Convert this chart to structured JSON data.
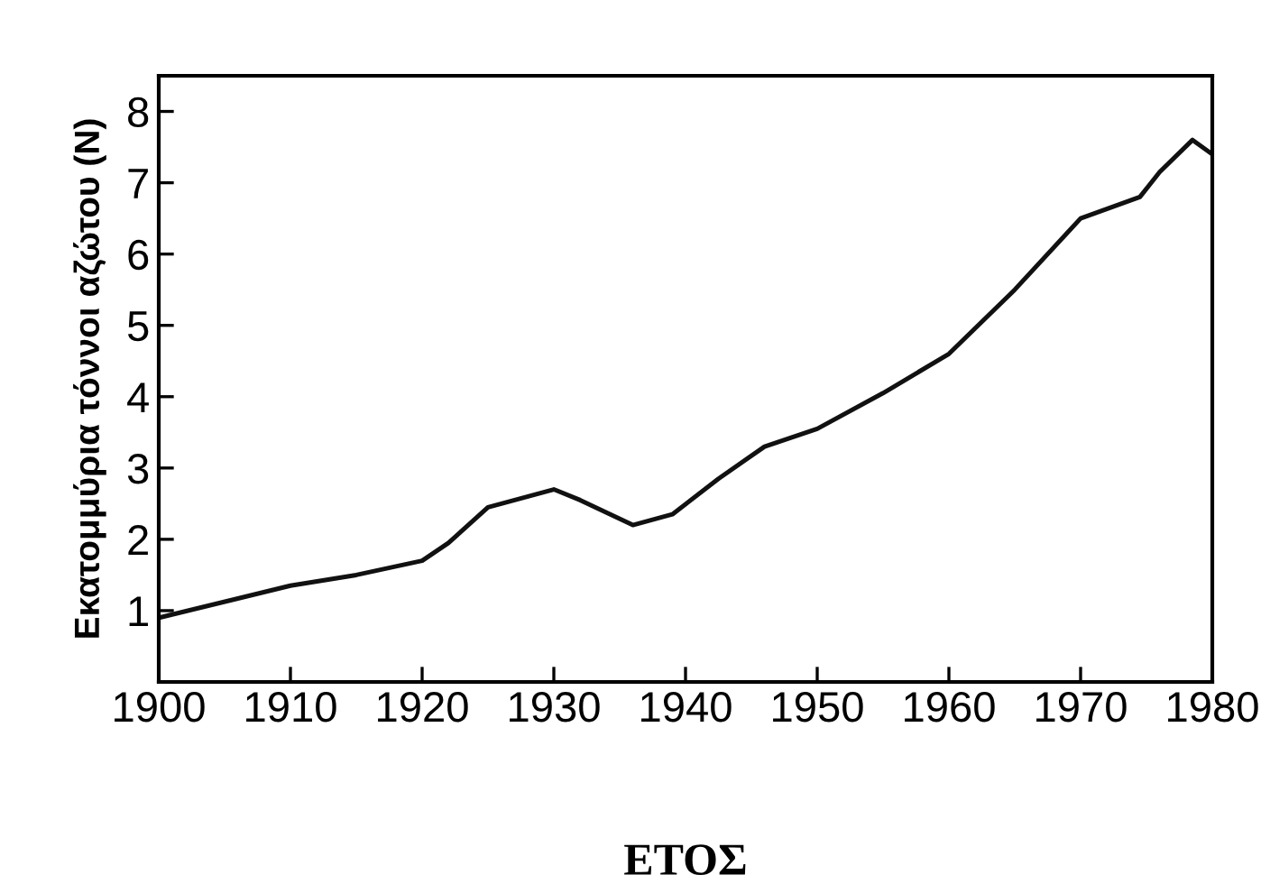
{
  "chart_data": {
    "type": "line",
    "xlabel": "ΕΤΟΣ",
    "ylabel": "Εκατομμύρια τόννοι αζώτου (N)",
    "x": [
      1900,
      1910,
      1915,
      1920,
      1922,
      1925,
      1930,
      1932,
      1936,
      1939,
      1942.5,
      1946,
      1950,
      1955,
      1960,
      1965,
      1970,
      1974.5,
      1976,
      1978.5,
      1980
    ],
    "series": [
      {
        "color": "#111111",
        "values": [
          0.9,
          1.35,
          1.5,
          1.7,
          1.95,
          2.45,
          2.7,
          2.55,
          2.2,
          2.35,
          2.85,
          3.3,
          3.55,
          4.05,
          4.6,
          5.5,
          6.5,
          6.8,
          7.15,
          7.6,
          7.4
        ]
      }
    ],
    "xlim": [
      1900,
      1980
    ],
    "xticks": [
      1900,
      1910,
      1920,
      1930,
      1940,
      1950,
      1960,
      1970,
      1980
    ],
    "ylim": [
      0,
      8.5
    ],
    "yticks": [
      1,
      2,
      3,
      4,
      5,
      6,
      7,
      8
    ],
    "grid": false,
    "legend": false,
    "marker": "none",
    "line_style": "solid"
  }
}
